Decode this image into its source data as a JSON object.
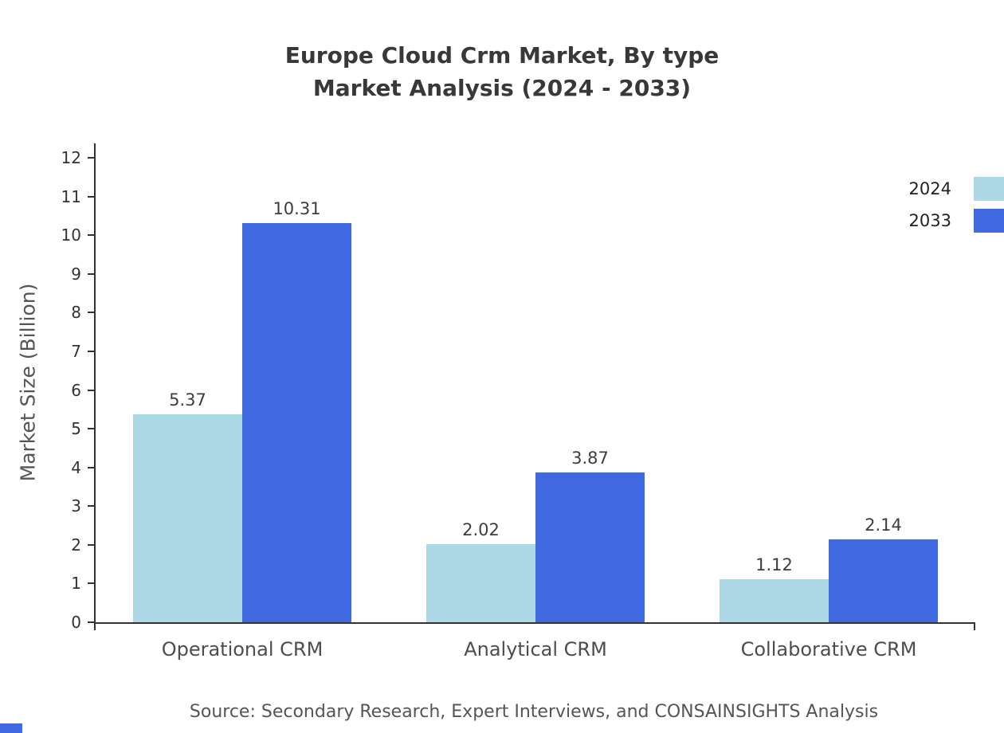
{
  "title": {
    "line1": "Europe Cloud Crm Market, By type",
    "line2": "Market Analysis (2024 - 2033)"
  },
  "chart_data": {
    "type": "bar",
    "categories": [
      "Operational CRM",
      "Analytical CRM",
      "Collaborative CRM"
    ],
    "series": [
      {
        "name": "2024",
        "color": "#ADD8E6",
        "values": [
          5.37,
          2.02,
          1.12
        ]
      },
      {
        "name": "2033",
        "color": "#4169E1",
        "values": [
          10.31,
          3.87,
          2.14
        ]
      }
    ],
    "ylabel": "Market Size (Billion)",
    "ylim": [
      0,
      12
    ],
    "yticks": [
      0,
      1,
      2,
      3,
      4,
      5,
      6,
      7,
      8,
      9,
      10,
      11,
      12
    ],
    "legend_position": "top-right",
    "grid": false,
    "value_labels": true
  },
  "source_note": "Source: Secondary Research, Expert Interviews, and CONSAINSIGHTS Analysis",
  "colors": {
    "axis": "#333333",
    "accent_blue": "#4169E1",
    "accent_lightblue": "#ADD8E6"
  }
}
